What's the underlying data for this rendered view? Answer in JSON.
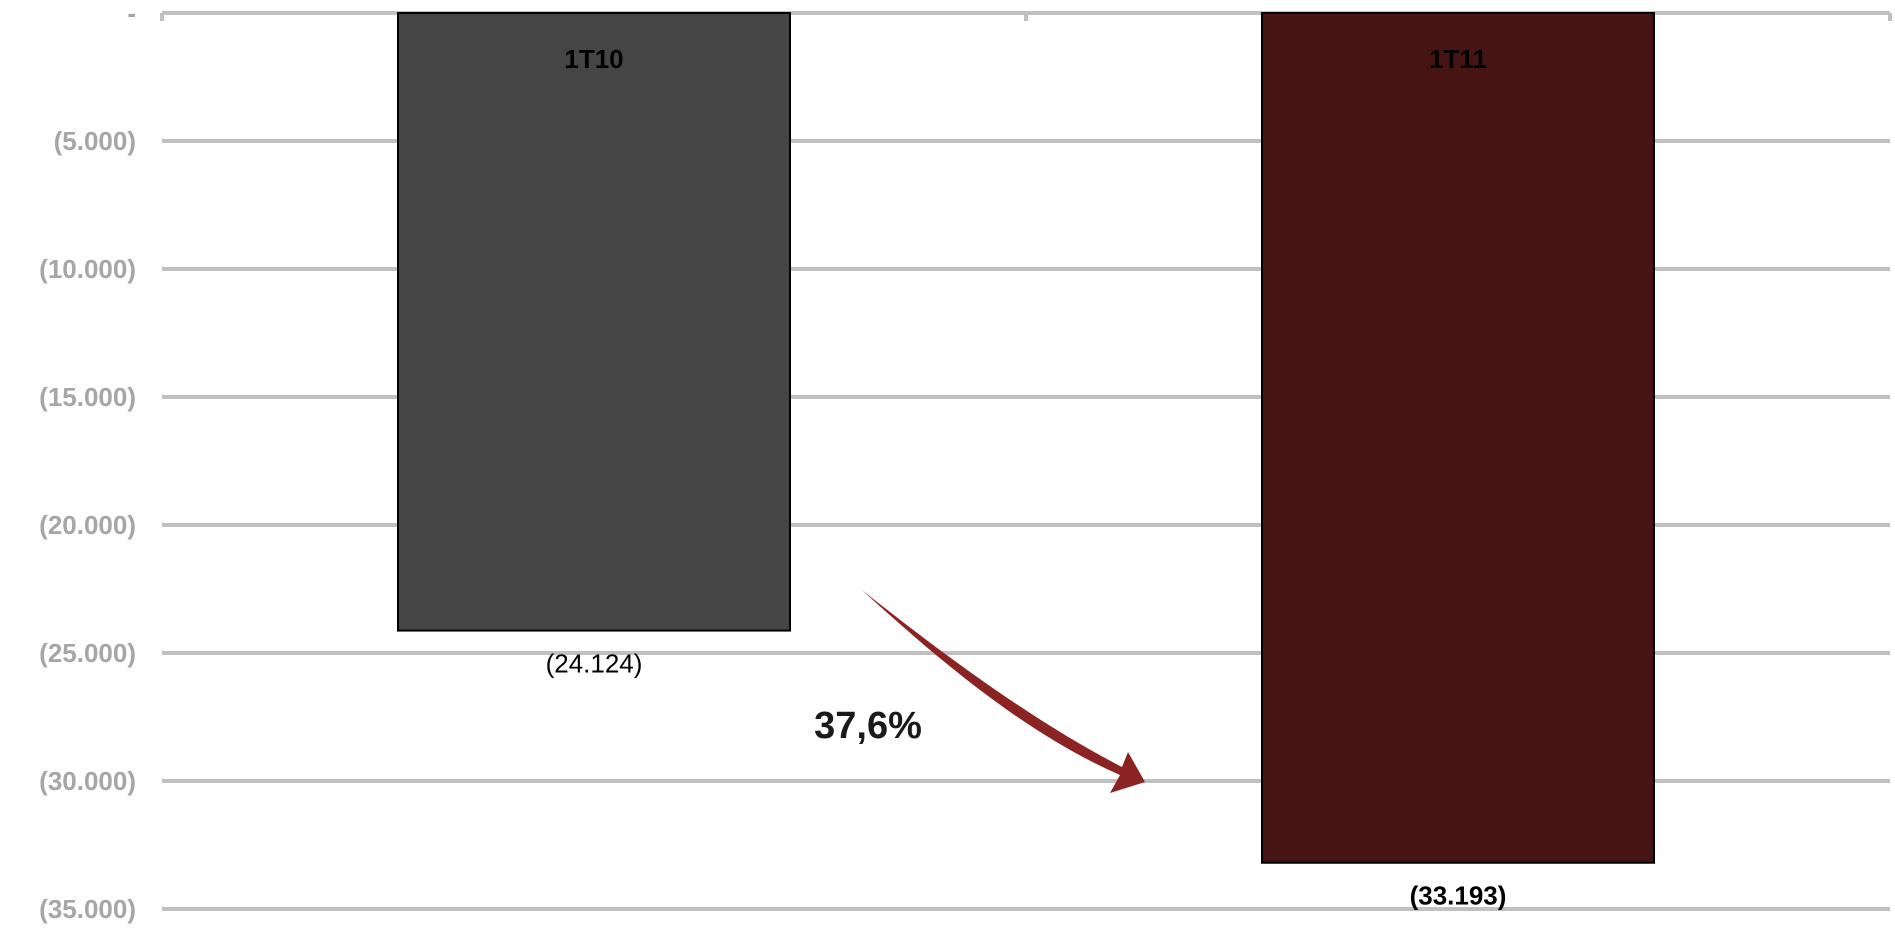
{
  "chart_data": {
    "type": "bar",
    "categories": [
      "1T10",
      "1T11"
    ],
    "values": [
      -24124,
      -33193
    ],
    "value_labels": [
      "(24.124)",
      "(33.193)"
    ],
    "bar_colors": [
      "#454545",
      "#461513"
    ],
    "ylim": [
      -35000,
      0
    ],
    "yticks": [
      0,
      -5000,
      -10000,
      -15000,
      -20000,
      -25000,
      -30000,
      -35000
    ],
    "ytick_labels": [
      "-",
      "(5.000)",
      "(10.000)",
      "(15.000)",
      "(20.000)",
      "(25.000)",
      "(30.000)",
      "(35.000)"
    ],
    "grid": true,
    "grid_color": "#c0c0c0",
    "annotation": {
      "text": "37,6%",
      "arrow_color": "#8b2323"
    },
    "title": "",
    "xlabel": "",
    "ylabel": ""
  }
}
